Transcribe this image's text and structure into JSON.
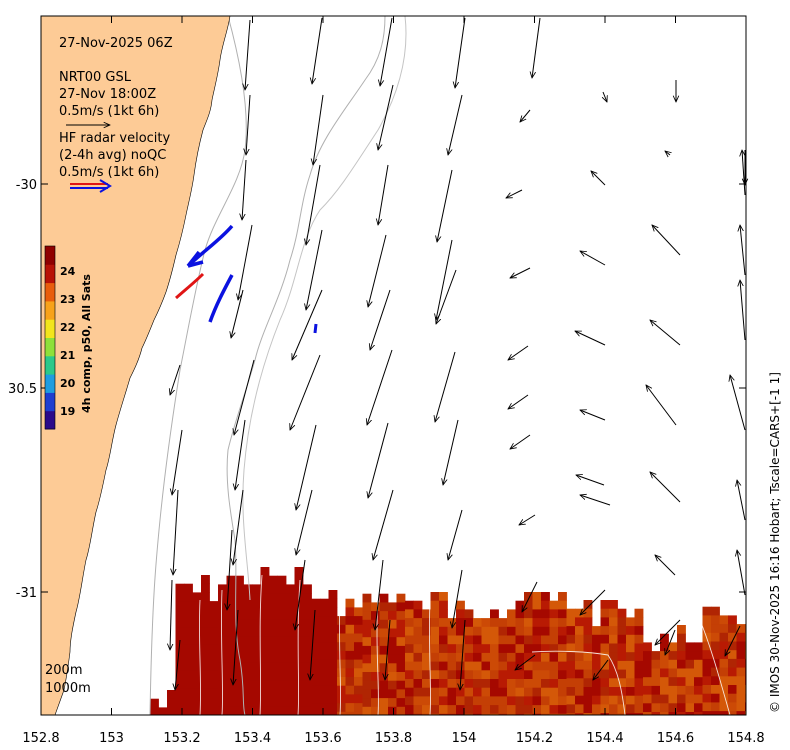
{
  "header": {
    "datetime": "27-Nov-2025 06Z",
    "model_line1": "NRT00 GSL",
    "model_line2": "27-Nov 18:00Z",
    "model_scale": "0.5m/s (1kt 6h)",
    "radar_line1": "HF radar velocity",
    "radar_line2": "(2-4h avg) noQC",
    "radar_scale": "0.5m/s (1kt 6h)"
  },
  "axes": {
    "x_ticks": [
      "152.8",
      "153",
      "153.2",
      "153.4",
      "153.6",
      "153.8",
      "154",
      "154.2",
      "154.4",
      "154.6",
      "154.8"
    ],
    "y_ticks": [
      "-30",
      "30.5",
      "-31"
    ]
  },
  "colorbar": {
    "label": "4h comp, p50, All Sats",
    "ticks": [
      "24",
      "23",
      "22",
      "21",
      "20",
      "19"
    ],
    "colors": [
      "#2b0a8a",
      "#1f3fd0",
      "#1f9de0",
      "#2cc98a",
      "#8ee03a",
      "#f2e51c",
      "#f7a21a",
      "#e85d0c",
      "#b81206",
      "#8f0000"
    ]
  },
  "contours": {
    "label1": "200m",
    "label2": "1000m"
  },
  "credit": "© IMOS 30-Nov-2025 16:16 Hobart; Tscale=CARS+[-1 1]",
  "colors": {
    "land": "#fdcb96",
    "sst_dark": "#a50800",
    "sst_mid": "#c43f05",
    "radar_blue": "#0b12e0",
    "radar_red": "#e01515"
  }
}
